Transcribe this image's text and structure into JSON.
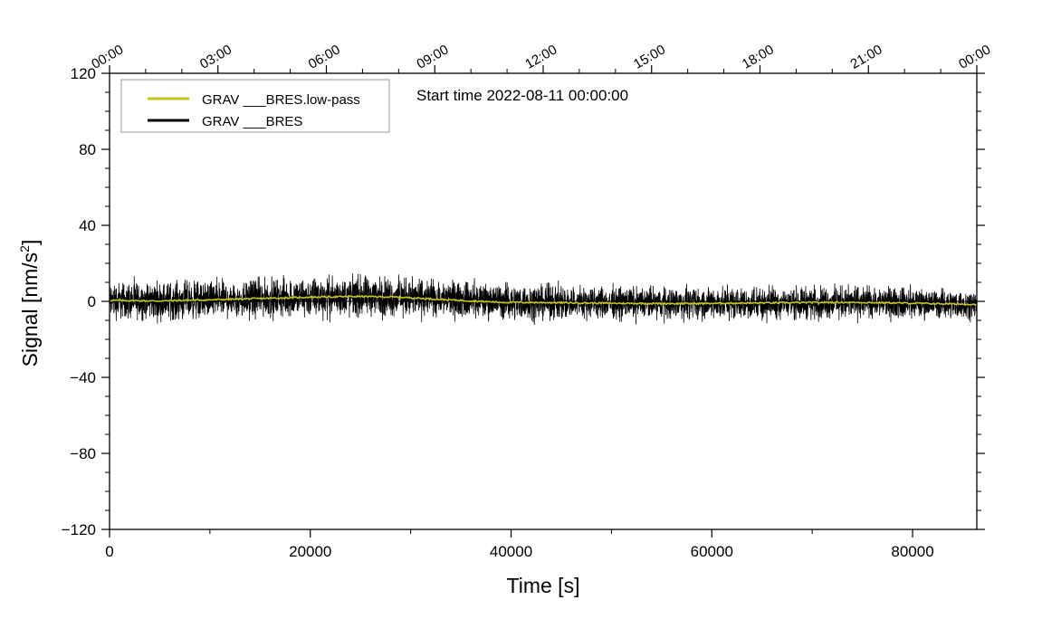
{
  "chart_data": {
    "type": "line",
    "title": "",
    "annotation": "Start time 2022-08-11 00:00:00",
    "xlabel": "Time [s]",
    "ylabel": "Signal [nm/s",
    "ylabel_sup": "2",
    "ylabel_end": "]",
    "xlim": [
      0,
      86400
    ],
    "ylim": [
      -120,
      120
    ],
    "x_ticks": [
      0,
      20000,
      40000,
      60000,
      80000
    ],
    "x_tick_labels": [
      "0",
      "20000",
      "40000",
      "60000",
      "80000"
    ],
    "y_ticks": [
      -120,
      -80,
      -40,
      0,
      40,
      80,
      120
    ],
    "y_tick_labels": [
      "−120",
      "−80",
      "−40",
      "0",
      "40",
      "80",
      "120"
    ],
    "top_axis": {
      "ticks": [
        0,
        10800,
        21600,
        32400,
        43200,
        54000,
        64800,
        75600,
        86400
      ],
      "labels": [
        "00:00",
        "03:00",
        "06:00",
        "09:00",
        "12:00",
        "15:00",
        "18:00",
        "21:00",
        "00:00"
      ]
    },
    "grid": false,
    "legend_position": "top-left",
    "series": [
      {
        "name": "GRAV ___BRES.low-pass",
        "color": "#c8c41a",
        "x": [
          0,
          5000,
          10000,
          15000,
          20000,
          25000,
          29000,
          33000,
          37000,
          39000,
          43000,
          48000,
          53000,
          58000,
          63000,
          68000,
          73000,
          77000,
          82000,
          86400
        ],
        "y": [
          0.5,
          0.2,
          0.8,
          1.5,
          2.2,
          2.6,
          2.2,
          1.0,
          0.0,
          -0.5,
          -0.6,
          -0.9,
          -1.1,
          -1.2,
          -0.9,
          -0.7,
          -0.5,
          -0.7,
          -1.2,
          -1.6
        ]
      },
      {
        "name": "GRAV ___BRES",
        "color": "#000000",
        "x": [
          0,
          5000,
          10000,
          15000,
          20000,
          25000,
          30000,
          35000,
          40000,
          45000,
          50000,
          55000,
          60000,
          65000,
          70000,
          75000,
          80000,
          86400
        ],
        "y": [
          0.4,
          0.3,
          0.9,
          1.6,
          2.1,
          2.5,
          2.0,
          1.0,
          -0.2,
          -0.5,
          -0.8,
          -1.0,
          -1.1,
          -0.9,
          -0.6,
          -0.5,
          -0.9,
          -1.6
        ],
        "noise_amplitude": [
          14,
          14,
          14,
          14,
          15,
          15,
          14,
          13,
          13,
          13,
          12,
          12,
          12,
          12,
          12,
          12,
          11,
          10
        ]
      }
    ]
  }
}
